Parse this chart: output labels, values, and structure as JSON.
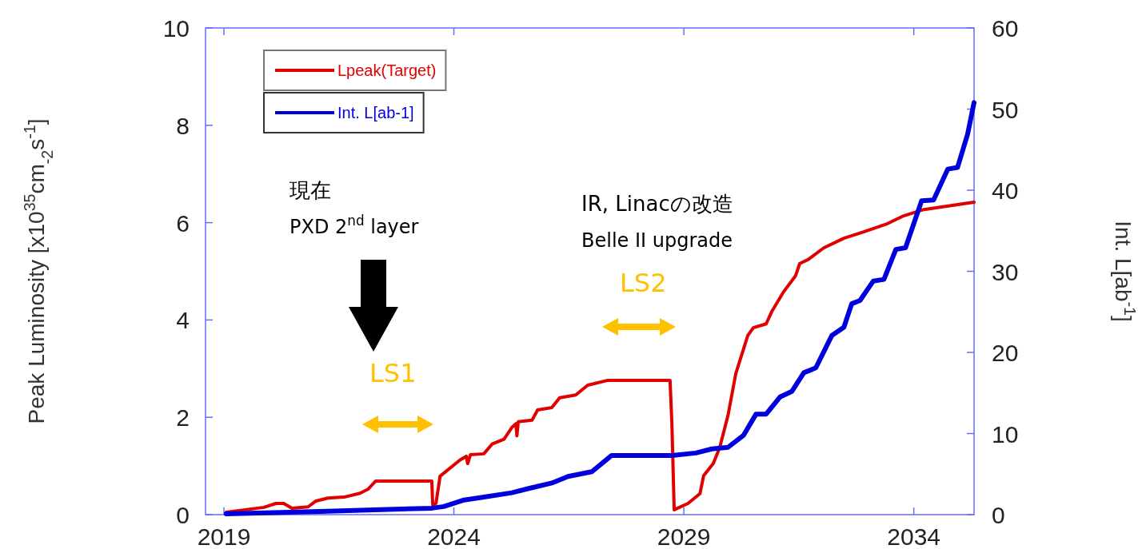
{
  "chart_data": {
    "type": "line",
    "xlabel": null,
    "ylabel": "Peak Luminosity [x10$^{35}$cm$_{-2}$s$^{-1}$]",
    "y2label": "Int. L[ab$^{-1}$]",
    "xlim": [
      2018.6,
      2035.31
    ],
    "xticks": [
      2019,
      2024,
      2029,
      2034
    ],
    "ylim": [
      0,
      10
    ],
    "yticks": [
      0,
      2,
      4,
      6,
      8,
      10
    ],
    "y2lim": [
      0,
      60
    ],
    "y2ticks": [
      0,
      10,
      20,
      30,
      40,
      50,
      60
    ],
    "legend": "top left",
    "series": [
      {
        "name": "Lpeak(Target)",
        "color": "#e00000",
        "x": [
          2019.05,
          2019.87,
          2020.13,
          2020.3,
          2020.48,
          2020.83,
          2021.0,
          2021.26,
          2021.61,
          2021.96,
          2022.13,
          2022.3,
          2023.52,
          2023.54,
          2023.61,
          2023.7,
          2024.13,
          2024.27,
          2024.3,
          2024.36,
          2024.65,
          2024.83,
          2025.09,
          2025.26,
          2025.35,
          2025.37,
          2025.4,
          2025.7,
          2025.82,
          2026.13,
          2026.3,
          2026.65,
          2026.91,
          2027.35,
          2028.7,
          2028.74,
          2028.79,
          2029.09,
          2029.35,
          2029.43,
          2029.64,
          2029.78,
          2029.96,
          2030.13,
          2030.39,
          2030.51,
          2030.79,
          2030.91,
          2031.17,
          2031.43,
          2031.52,
          2031.7,
          2032.04,
          2032.48,
          2032.91,
          2033.43,
          2033.78,
          2034.22,
          2035.31
        ],
        "values": [
          0.05,
          0.15,
          0.23,
          0.23,
          0.13,
          0.16,
          0.28,
          0.34,
          0.36,
          0.44,
          0.52,
          0.69,
          0.69,
          0.2,
          0.23,
          0.79,
          1.12,
          1.2,
          1.05,
          1.23,
          1.25,
          1.45,
          1.55,
          1.79,
          1.87,
          1.62,
          1.91,
          1.94,
          2.15,
          2.2,
          2.4,
          2.46,
          2.66,
          2.76,
          2.76,
          1.87,
          0.1,
          0.23,
          0.43,
          0.8,
          1.05,
          1.38,
          2.04,
          2.9,
          3.68,
          3.84,
          3.92,
          4.17,
          4.58,
          4.91,
          5.16,
          5.24,
          5.48,
          5.68,
          5.81,
          5.98,
          6.14,
          6.27,
          6.42
        ]
      },
      {
        "name": "Int. L[ab-1]",
        "color": "#0000dd",
        "axis": "y2",
        "x": [
          2019.05,
          2021.09,
          2023.52,
          2023.78,
          2024.22,
          2024.57,
          2025.26,
          2025.61,
          2026.13,
          2026.48,
          2027.0,
          2027.43,
          2028.74,
          2029.26,
          2029.61,
          2029.96,
          2030.3,
          2030.57,
          2030.79,
          2031.09,
          2031.35,
          2031.61,
          2031.87,
          2032.22,
          2032.48,
          2032.65,
          2032.83,
          2033.12,
          2033.35,
          2033.61,
          2033.82,
          2034.17,
          2034.43,
          2034.74,
          2034.95,
          2035.17,
          2035.31
        ],
        "values": [
          0.1,
          0.4,
          0.8,
          1.0,
          1.8,
          2.1,
          2.7,
          3.2,
          3.9,
          4.7,
          5.3,
          7.3,
          7.3,
          7.6,
          8.1,
          8.3,
          9.8,
          12.4,
          12.4,
          14.5,
          15.2,
          17.5,
          18.1,
          22.1,
          23.1,
          26.0,
          26.4,
          28.8,
          29.0,
          32.7,
          32.9,
          38.7,
          38.8,
          42.6,
          42.8,
          46.9,
          50.8
        ]
      }
    ],
    "annotations": [
      "現在",
      "PXD 2$^{nd}$ layer",
      "IR, Linacの改造",
      "Belle II upgrade",
      "LS1",
      "LS2"
    ]
  }
}
